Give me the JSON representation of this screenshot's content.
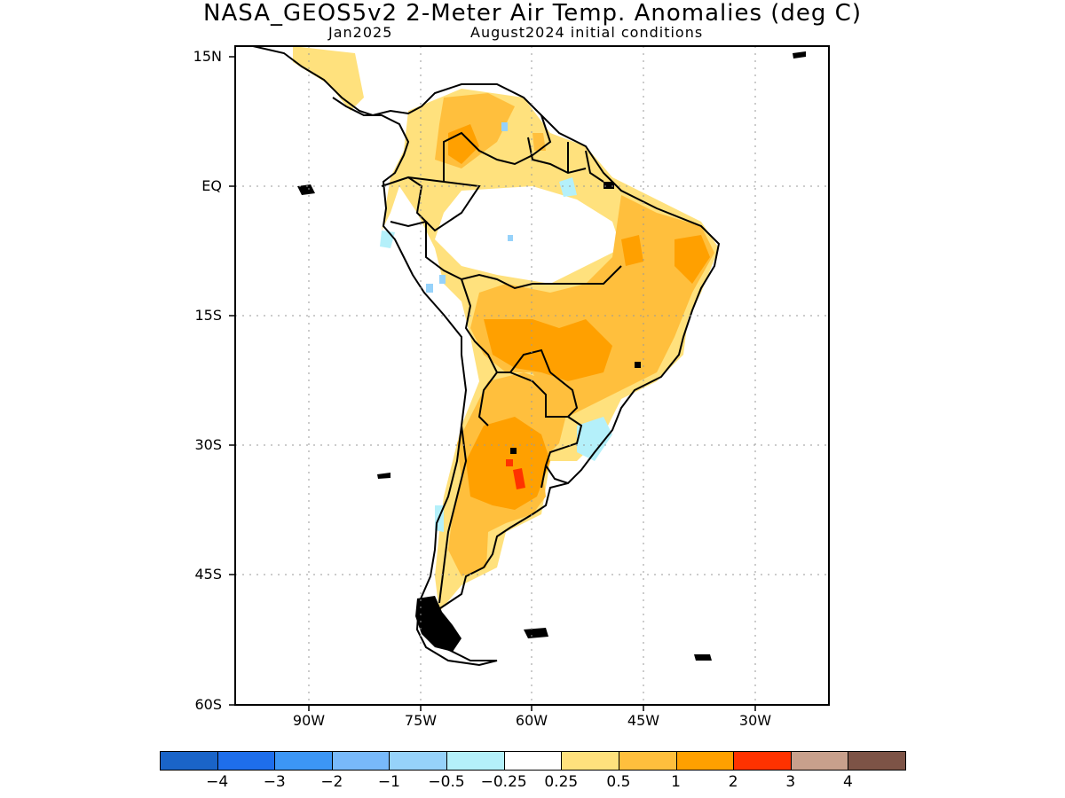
{
  "title": "NASA_GEOS5v2 2-Meter Air Temp. Anomalies (deg C)",
  "subtitle_left": "Jan2025",
  "subtitle_right": "August2024 initial conditions",
  "map": {
    "lat_labels": [
      "15N",
      "EQ",
      "15S",
      "30S",
      "45S",
      "60S"
    ],
    "lon_labels": [
      "90W",
      "75W",
      "60W",
      "45W",
      "30W"
    ],
    "grid": true,
    "region": "South America"
  },
  "colorbar": {
    "colors": [
      "#1a64c8",
      "#1e6eeb",
      "#3c96f5",
      "#78b9fa",
      "#96d2fa",
      "#b4f0fa",
      "#ffffff",
      "#ffe17d",
      "#ffbf3d",
      "#ffa000",
      "#ff3200",
      "#c8a08c",
      "#7d5346"
    ],
    "labels": [
      "−4",
      "−3",
      "−2",
      "−1",
      "−0.5",
      "−0.25",
      "0.25",
      "0.5",
      "1",
      "2",
      "3",
      "4"
    ]
  }
}
